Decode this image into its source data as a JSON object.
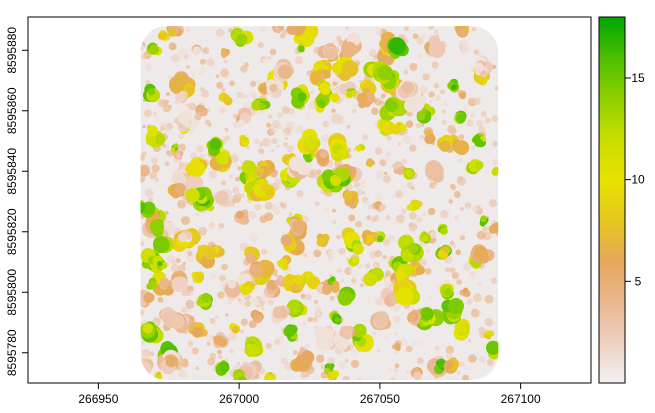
{
  "chart_data": {
    "type": "heatmap",
    "title": "",
    "xlabel": "",
    "ylabel": "",
    "xlim": [
      266925,
      267125
    ],
    "ylim": [
      8595770,
      8595891
    ],
    "x_ticks": [
      266950,
      267000,
      267050,
      267100
    ],
    "x_tick_labels": [
      "266950",
      "267000",
      "267050",
      "267100"
    ],
    "y_ticks": [
      8595780,
      8595800,
      8595820,
      8595840,
      8595860,
      8595880
    ],
    "y_tick_labels": [
      "8595780",
      "8595800",
      "8595820",
      "8595840",
      "8595860",
      "8595880"
    ],
    "raster_extent": {
      "xmin": 266965,
      "xmax": 267092,
      "ymin": 8595771,
      "ymax": 8595888
    },
    "value_range": [
      0,
      18
    ],
    "legend": {
      "placement": "right",
      "ticks": [
        5,
        10,
        15
      ],
      "tick_labels": [
        "5",
        "10",
        "15"
      ],
      "colors": [
        "#f2f2f2",
        "#eecfc0",
        "#eab78f",
        "#e6a75a",
        "#e6c81e",
        "#e8e100",
        "#c9de00",
        "#8fcf00",
        "#4cbe00",
        "#00a600"
      ]
    },
    "description_of_values": "Canopy height raster: crowns 0-18, bright green highest, pale pink/gray lowest"
  }
}
